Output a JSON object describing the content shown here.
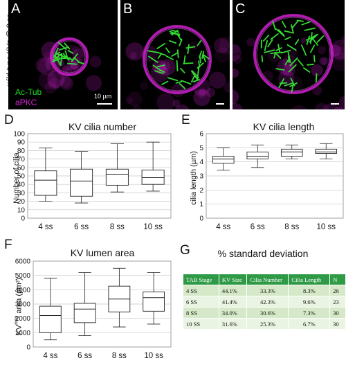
{
  "side_label": "wild-type KVs @ 8 ss",
  "microscopy": {
    "panels": [
      {
        "letter": "A",
        "legend_green": "Ac-Tub",
        "legend_magenta": "aPKC",
        "scale_label": "10 µm"
      },
      {
        "letter": "B"
      },
      {
        "letter": "C"
      }
    ],
    "colors": {
      "cilia": "#33dd33",
      "membrane": "#d020d0",
      "background": "#000000"
    }
  },
  "charts": [
    {
      "letter": "D",
      "chart_data": {
        "type": "box",
        "title": "KV cilia number",
        "ylabel": "Number of cilia",
        "xlabel": "",
        "categories": [
          "4 ss",
          "6 ss",
          "8 ss",
          "10 ss"
        ],
        "ylim": [
          0,
          100
        ],
        "yticks": [
          "0",
          "10",
          "20",
          "30",
          "40",
          "50",
          "60",
          "70",
          "80",
          "90",
          "100"
        ],
        "ytick_values": [
          0,
          10,
          20,
          30,
          40,
          50,
          60,
          70,
          80,
          90,
          100
        ],
        "boxes": [
          {
            "min": 20,
            "q1": 27,
            "median": 45,
            "q3": 56,
            "max": 83
          },
          {
            "min": 18,
            "q1": 26,
            "median": 44,
            "q3": 58,
            "max": 79
          },
          {
            "min": 31,
            "q1": 39,
            "median": 52,
            "q3": 58,
            "max": 88
          },
          {
            "min": 32,
            "q1": 40,
            "median": 48,
            "q3": 57,
            "max": 90
          }
        ],
        "grid": true
      }
    },
    {
      "letter": "E",
      "chart_data": {
        "type": "box",
        "title": "KV cilia length",
        "ylabel": "cilia length (µm)",
        "xlabel": "",
        "categories": [
          "4 ss",
          "6 ss",
          "8 ss",
          "10 ss"
        ],
        "ylim": [
          0,
          6
        ],
        "yticks": [
          "0",
          "1",
          "2",
          "3",
          "4",
          "5",
          "6"
        ],
        "ytick_values": [
          0,
          1,
          2,
          3,
          4,
          5,
          6
        ],
        "boxes": [
          {
            "min": 3.4,
            "q1": 3.9,
            "median": 4.2,
            "q3": 4.4,
            "max": 5.0
          },
          {
            "min": 3.6,
            "q1": 4.2,
            "median": 4.4,
            "q3": 4.7,
            "max": 5.2
          },
          {
            "min": 4.2,
            "q1": 4.4,
            "median": 4.7,
            "q3": 4.9,
            "max": 5.2
          },
          {
            "min": 4.2,
            "q1": 4.6,
            "median": 4.7,
            "q3": 4.9,
            "max": 5.3
          }
        ],
        "grid": true
      }
    },
    {
      "letter": "F",
      "chart_data": {
        "type": "box",
        "title": "KV lumen area",
        "ylabel": "KVmax area (µm²)",
        "xlabel": "",
        "categories": [
          "4 ss",
          "6 ss",
          "8 ss",
          "10 ss"
        ],
        "ylim": [
          0,
          6000
        ],
        "yticks": [
          "0",
          "1000",
          "2000",
          "3000",
          "4000",
          "5000",
          "6000"
        ],
        "ytick_values": [
          0,
          1000,
          2000,
          3000,
          4000,
          5000,
          6000
        ],
        "boxes": [
          {
            "min": 500,
            "q1": 1000,
            "median": 2200,
            "q3": 2850,
            "max": 4800
          },
          {
            "min": 800,
            "q1": 1700,
            "median": 2650,
            "q3": 3050,
            "max": 5200
          },
          {
            "min": 1400,
            "q1": 2450,
            "median": 3350,
            "q3": 4250,
            "max": 5500
          },
          {
            "min": 1600,
            "q1": 2500,
            "median": 3450,
            "q3": 3850,
            "max": 5200
          }
        ],
        "grid": true
      }
    }
  ],
  "table_panel": {
    "letter": "G",
    "title": "% standard deviation",
    "headers": [
      "TAB Stage",
      "KV Size",
      "Cilia Number",
      "Cilia Length",
      "N"
    ],
    "rows": [
      [
        "4 SS",
        "44.1%",
        "33.3%",
        "8.3%",
        "26"
      ],
      [
        "6 SS",
        "41.4%",
        "42.3%",
        "9.6%",
        "23"
      ],
      [
        "8 SS",
        "34.0%",
        "30.6%",
        "7.3%",
        "30"
      ],
      [
        "10 SS",
        "31.6%",
        "25.3%",
        "6.7%",
        "30"
      ]
    ],
    "colors": {
      "header": "#2e9a45",
      "row_odd": "#d5e9c8",
      "row_even": "#eaf4e2"
    }
  }
}
